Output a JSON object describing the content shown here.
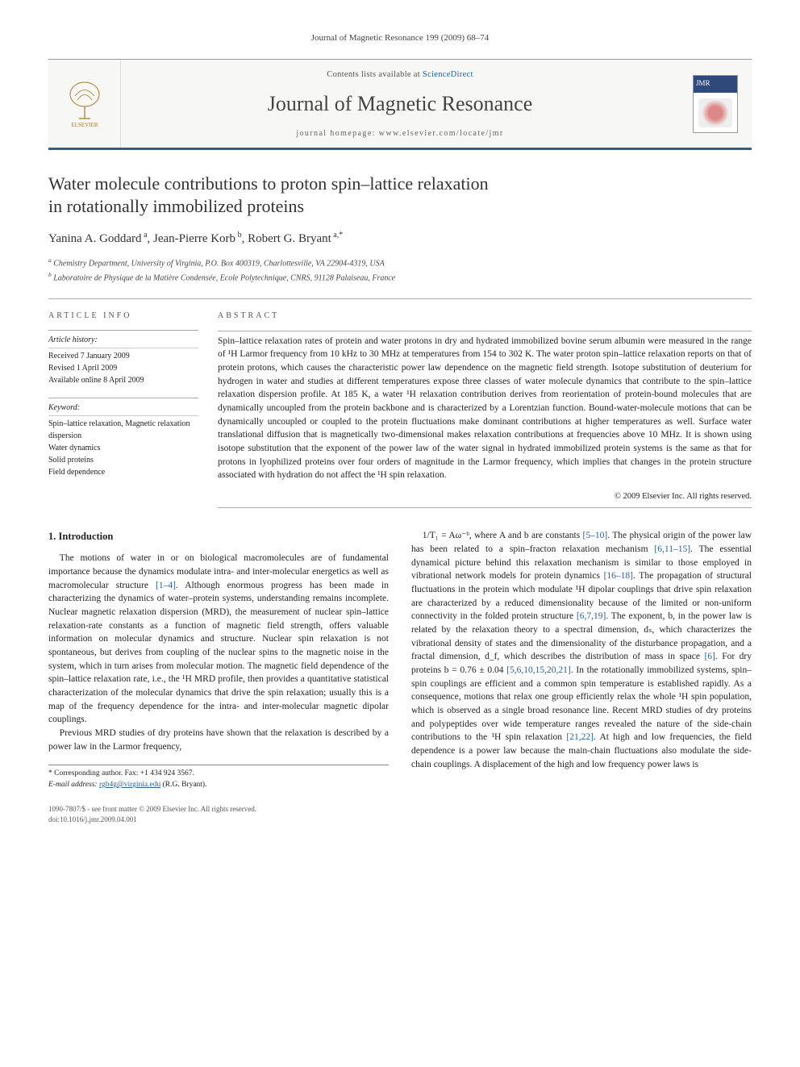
{
  "page_header": "Journal of Magnetic Resonance 199 (2009) 68–74",
  "masthead": {
    "contents_prefix": "Contents lists available at ",
    "contents_link": "ScienceDirect",
    "journal_name": "Journal of Magnetic Resonance",
    "homepage_prefix": "journal homepage: ",
    "homepage_url": "www.elsevier.com/locate/jmr",
    "publisher_label": "ELSEVIER",
    "cover_label": "JMR"
  },
  "title_line1": "Water molecule contributions to proton spin–lattice relaxation",
  "title_line2": "in rotationally immobilized proteins",
  "authors_html": "Yanina A. Goddard<sup> a</sup>, Jean-Pierre Korb<sup> b</sup>, Robert G. Bryant<sup> a,*</sup>",
  "affiliations": {
    "a": "Chemistry Department, University of Virginia, P.O. Box 400319, Charlottesville, VA 22904-4319, USA",
    "b": "Laboratoire de Physique de la Matière Condensée, Ecole Polytechnique, CNRS, 91128 Palaiseau, France"
  },
  "info_label": "ARTICLE INFO",
  "abstract_label": "ABSTRACT",
  "history": {
    "heading": "Article history:",
    "received": "Received 7 January 2009",
    "revised": "Revised 1 April 2009",
    "online": "Available online 8 April 2009"
  },
  "keywords": {
    "heading": "Keyword:",
    "k1": "Spin–lattice relaxation, Magnetic relaxation dispersion",
    "k2": "Water dynamics",
    "k3": "Solid proteins",
    "k4": "Field dependence"
  },
  "abstract": "Spin–lattice relaxation rates of protein and water protons in dry and hydrated immobilized bovine serum albumin were measured in the range of ¹H Larmor frequency from 10 kHz to 30 MHz at temperatures from 154 to 302 K. The water proton spin–lattice relaxation reports on that of protein protons, which causes the characteristic power law dependence on the magnetic field strength. Isotope substitution of deuterium for hydrogen in water and studies at different temperatures expose three classes of water molecule dynamics that contribute to the spin–lattice relaxation dispersion profile. At 185 K, a water ¹H relaxation contribution derives from reorientation of protein-bound molecules that are dynamically uncoupled from the protein backbone and is characterized by a Lorentzian function. Bound-water-molecule motions that can be dynamically uncoupled or coupled to the protein fluctuations make dominant contributions at higher temperatures as well. Surface water translational diffusion that is magnetically two-dimensional makes relaxation contributions at frequencies above 10 MHz. It is shown using isotope substitution that the exponent of the power law of the water signal in hydrated immobilized protein systems is the same as that for protons in lyophilized proteins over four orders of magnitude in the Larmor frequency, which implies that changes in the protein structure associated with hydration do not affect the ¹H spin relaxation.",
  "copyright": "© 2009 Elsevier Inc. All rights reserved.",
  "section1": {
    "heading": "1. Introduction",
    "p1": "The motions of water in or on biological macromolecules are of fundamental importance because the dynamics modulate intra- and inter-molecular energetics as well as macromolecular structure [1–4]. Although enormous progress has been made in characterizing the dynamics of water–protein systems, understanding remains incomplete. Nuclear magnetic relaxation dispersion (MRD), the measurement of nuclear spin–lattice relaxation-rate constants as a function of magnetic field strength, offers valuable information on molecular dynamics and structure. Nuclear spin relaxation is not spontaneous, but derives from coupling of the nuclear spins to the magnetic noise in the system, which in turn arises from molecular motion. The magnetic field dependence of the spin–lattice relaxation rate, i.e., the ¹H MRD profile, then provides a quantitative statistical characterization of the molecular dynamics that drive the spin relaxation; usually this is a map of the frequency dependence for the intra- and inter-molecular magnetic dipolar couplings.",
    "p2": "Previous MRD studies of dry proteins have shown that the relaxation is described by a power law in the Larmor frequency,",
    "p3": "1/T₁ = Aω⁻ᵇ, where A and b are constants [5–10]. The physical origin of the power law has been related to a spin–fracton relaxation mechanism [6,11–15]. The essential dynamical picture behind this relaxation mechanism is similar to those employed in vibrational network models for protein dynamics [16–18]. The propagation of structural fluctuations in the protein which modulate ¹H dipolar couplings that drive spin relaxation are characterized by a reduced dimensionality because of the limited or non-uniform connectivity in the folded protein structure [6,7,19]. The exponent, b, in the power law is related by the relaxation theory to a spectral dimension, dₛ, which characterizes the vibrational density of states and the dimensionality of the disturbance propagation, and a fractal dimension, d_f, which describes the distribution of mass in space [6]. For dry proteins b = 0.76 ± 0.04 [5,6,10,15,20,21]. In the rotationally immobilized systems, spin–spin couplings are efficient and a common spin temperature is established rapidly. As a consequence, motions that relax one group efficiently relax the whole ¹H spin population, which is observed as a single broad resonance line. Recent MRD studies of dry proteins and polypeptides over wide temperature ranges revealed the nature of the side-chain contributions to the ¹H spin relaxation [21,22]. At high and low frequencies, the field dependence is a power law because the main-chain fluctuations also modulate the side-chain couplings. A displacement of the high and low frequency power laws is"
  },
  "footnote": {
    "corr": "* Corresponding author. Fax: +1 434 924 3567.",
    "email_label": "E-mail address:",
    "email": "rgb4g@virginia.edu",
    "email_who": "(R.G. Bryant)."
  },
  "footer": {
    "issn": "1090-7807/$ - see front matter © 2009 Elsevier Inc. All rights reserved.",
    "doi": "doi:10.1016/j.jmr.2009.04.001"
  },
  "colors": {
    "accent": "#2b5f8f",
    "rule": "#aaaaaa",
    "text": "#222222"
  }
}
